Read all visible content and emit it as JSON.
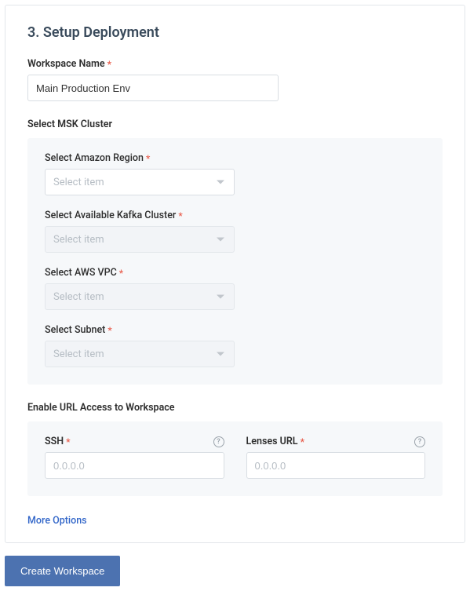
{
  "card": {
    "title": "3. Setup Deployment",
    "workspace_name": {
      "label": "Workspace Name",
      "value": "Main Production Env"
    },
    "msk_section": {
      "label": "Select MSK Cluster",
      "region": {
        "label": "Select Amazon Region",
        "placeholder": "Select item",
        "disabled": false
      },
      "kafka": {
        "label": "Select Available Kafka Cluster",
        "placeholder": "Select item",
        "disabled": true
      },
      "vpc": {
        "label": "Select AWS VPC",
        "placeholder": "Select item",
        "disabled": true
      },
      "subnet": {
        "label": "Select Subnet",
        "placeholder": "Select item",
        "disabled": true
      }
    },
    "url_section": {
      "label": "Enable URL Access to Workspace",
      "ssh": {
        "label": "SSH",
        "placeholder": "0.0.0.0",
        "value": ""
      },
      "lenses": {
        "label": "Lenses URL",
        "placeholder": "0.0.0.0",
        "value": ""
      }
    },
    "more_options": "More Options"
  },
  "actions": {
    "create_label": "Create Workspace"
  },
  "colors": {
    "card_border": "#e2e6ea",
    "panel_bg": "#f6f8fa",
    "title_color": "#394a5b",
    "required_color": "#e85b4a",
    "link_color": "#3367c9",
    "button_bg": "#4c72b0",
    "input_border": "#d9dee3",
    "placeholder": "#b6bdc4"
  }
}
